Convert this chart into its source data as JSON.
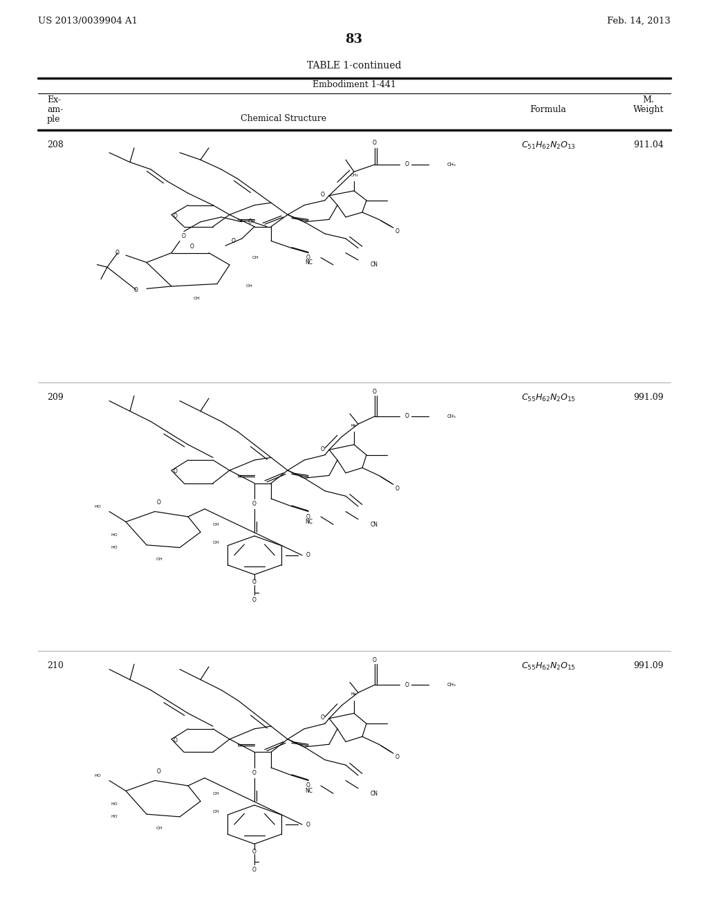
{
  "bg_color": "#ffffff",
  "patent_left": "US 2013/0039904 A1",
  "patent_right": "Feb. 14, 2013",
  "page_number": "83",
  "table_title": "TABLE 1-continued",
  "embodiment": "Embodiment 1-441",
  "header_example": [
    "Ex-",
    "am-",
    "ple"
  ],
  "header_structure": "Chemical Structure",
  "header_formula": "Formula",
  "header_mw1": "M.",
  "header_mw2": "Weight",
  "rows": [
    {
      "example": "208",
      "formula": "C_{51}H_{62}N_2O_{13}",
      "mw": "911.04"
    },
    {
      "example": "209",
      "formula": "C_{55}H_{62}N_2O_{15}",
      "mw": "991.09"
    },
    {
      "example": "210",
      "formula": "C_{55}H_{62}N_2O_{15}",
      "mw": "991.09"
    }
  ]
}
